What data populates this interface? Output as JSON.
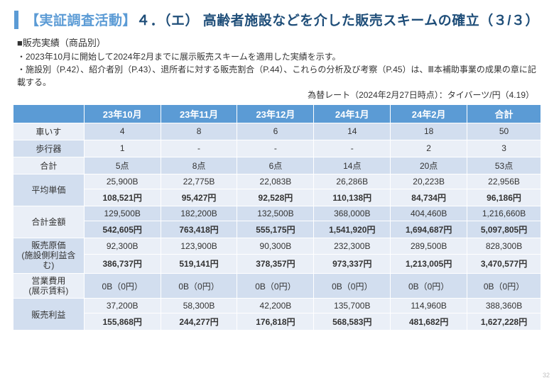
{
  "header": {
    "bracket": "【実証調査活動】",
    "rest": "４．（エ） 高齢者施設などを介した販売スキームの確立（３/３）"
  },
  "intro": {
    "l1": "■販売実績（商品別）",
    "l2": "・2023年10月に開始して2024年2月までに展示販売スキームを適用した実績を示す。",
    "l3": "・施設別（P.42）、紹介者別（P.43）、退所者に対する販売割合（P.44）、これらの分析及び考察（P.45）は、Ⅲ本補助事業の成果の章に記載する。",
    "l4": "為替レート（2024年2月27日時点）：タイバーツ/円（4.19）"
  },
  "columns": [
    "",
    "23年10月",
    "23年11月",
    "23年12月",
    "24年1月",
    "24年2月",
    "合計"
  ],
  "rows": {
    "r1": {
      "h": "車いす",
      "c": [
        "4",
        "8",
        "6",
        "14",
        "18",
        "50"
      ]
    },
    "r2": {
      "h": "歩行器",
      "c": [
        "1",
        "-",
        "-",
        "-",
        "2",
        "3"
      ]
    },
    "r3": {
      "h": "合計",
      "c": [
        "5点",
        "8点",
        "6点",
        "14点",
        "20点",
        "53点"
      ]
    },
    "r4a": {
      "h": "平均単価",
      "c": [
        "25,900B",
        "22,775B",
        "22,083B",
        "26,286B",
        "20,223B",
        "22,956B"
      ]
    },
    "r4b": {
      "c": [
        "108,521円",
        "95,427円",
        "92,528円",
        "110,138円",
        "84,734円",
        "96,186円"
      ]
    },
    "r5a": {
      "h": "合計金額",
      "c": [
        "129,500B",
        "182,200B",
        "132,500B",
        "368,000B",
        "404,460B",
        "1,216,660B"
      ]
    },
    "r5b": {
      "c": [
        "542,605円",
        "763,418円",
        "555,175円",
        "1,541,920円",
        "1,694,687円",
        "5,097,805円"
      ]
    },
    "r6a": {
      "h": "販売原価\n(施設側利益含む)",
      "c": [
        "92,300B",
        "123,900B",
        "90,300B",
        "232,300B",
        "289,500B",
        "828,300B"
      ]
    },
    "r6b": {
      "c": [
        "386,737円",
        "519,141円",
        "378,357円",
        "973,337円",
        "1,213,005円",
        "3,470,577円"
      ]
    },
    "r7": {
      "h": "営業費用\n(展示賃料)",
      "c": [
        "0B（0円）",
        "0B（0円）",
        "0B（0円）",
        "0B（0円）",
        "0B（0円）",
        "0B（0円）"
      ]
    },
    "r8a": {
      "h": "販売利益",
      "c": [
        "37,200B",
        "58,300B",
        "42,200B",
        "135,700B",
        "114,960B",
        "388,360B"
      ]
    },
    "r8b": {
      "c": [
        "155,868円",
        "244,277円",
        "176,818円",
        "568,583円",
        "481,682円",
        "1,627,228円"
      ]
    }
  },
  "pagenum": "32",
  "colors": {
    "accent": "#5b9bd5",
    "title": "#1f4e79",
    "band1": "#eaeff7",
    "band2": "#d2deef"
  }
}
